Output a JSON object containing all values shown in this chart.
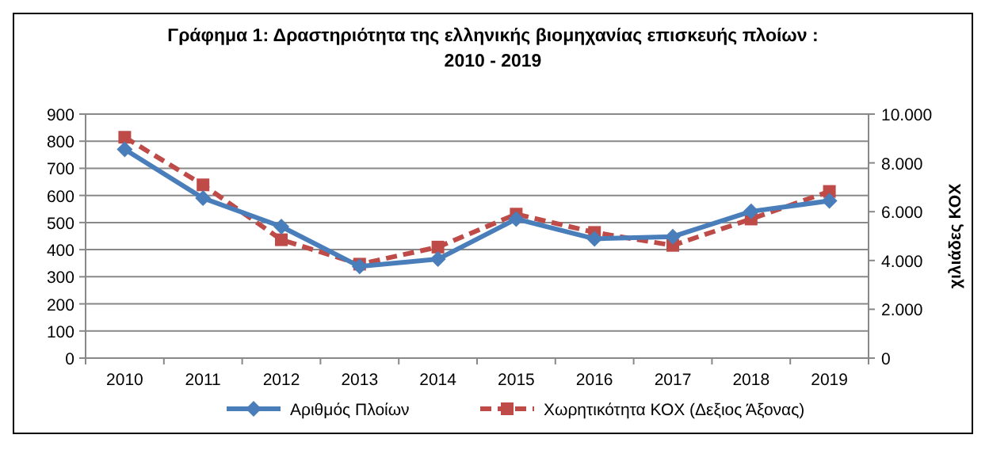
{
  "chart_data": {
    "type": "line",
    "title": "Γράφημα 1: Δραστηριότητα της ελληνικής βιομηχανίας επισκευής πλοίων :\n2010 - 2019",
    "y2label": "χιλιάδες ΚΟΧ",
    "categories": [
      "2010",
      "2011",
      "2012",
      "2013",
      "2014",
      "2015",
      "2016",
      "2017",
      "2018",
      "2019"
    ],
    "series": [
      {
        "name": "Αριθμός Πλοίων",
        "color": "#4a7ebb",
        "values": [
          770,
          590,
          485,
          338,
          365,
          513,
          440,
          448,
          541,
          580
        ],
        "marker": "diamond",
        "line_style": "solid"
      },
      {
        "name": "Χωρητικότητα ΚΟΧ (Δεξιος Άξονας)",
        "color": "#be4b48",
        "values": [
          9050,
          7100,
          4850,
          3850,
          4550,
          5900,
          5150,
          4620,
          5700,
          6830
        ],
        "axis": "y2",
        "marker": "square",
        "line_style": "dashed"
      }
    ],
    "ylim": [
      0,
      900
    ],
    "yticks": [
      0,
      100,
      200,
      300,
      400,
      500,
      600,
      700,
      800,
      900
    ],
    "y2lim": [
      0,
      10000
    ],
    "y2ticks": [
      {
        "value": 0,
        "label": "0"
      },
      {
        "value": 2000,
        "label": "2.000"
      },
      {
        "value": 4000,
        "label": "4.000"
      },
      {
        "value": 6000,
        "label": "6.000"
      },
      {
        "value": 8000,
        "label": "8.000"
      },
      {
        "value": 10000,
        "label": "10.000"
      }
    ],
    "grid": "y",
    "legend": "bottom"
  }
}
